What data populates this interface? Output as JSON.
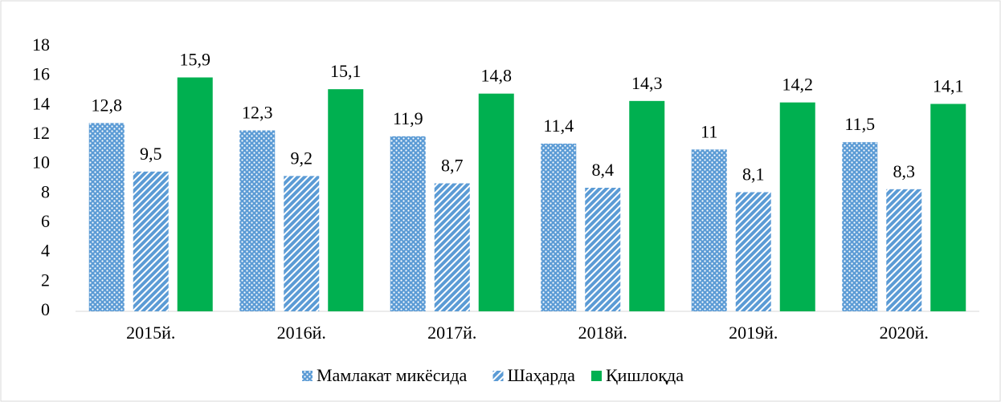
{
  "chart_data": {
    "type": "bar",
    "categories": [
      "2015й.",
      "2016й.",
      "2017й.",
      "2018й.",
      "2019й.",
      "2020й."
    ],
    "series": [
      {
        "name": "Мамлакат микёсида",
        "color": "#5b9bd5",
        "pattern": "dots",
        "values": [
          12.8,
          12.3,
          11.9,
          11.4,
          11,
          11.5
        ],
        "value_labels": [
          "12,8",
          "12,3",
          "11,9",
          "11,4",
          "11",
          "11,5"
        ]
      },
      {
        "name": "Шаҳарда",
        "color": "#5b9bd5",
        "pattern": "diagonal",
        "values": [
          9.5,
          9.2,
          8.7,
          8.4,
          8.1,
          8.3
        ],
        "value_labels": [
          "9,5",
          "9,2",
          "8,7",
          "8,4",
          "8,1",
          "8,3"
        ]
      },
      {
        "name": "Қишлоқда",
        "color": "#00b050",
        "pattern": "solid",
        "values": [
          15.9,
          15.1,
          14.8,
          14.3,
          14.2,
          14.1
        ],
        "value_labels": [
          "15,9",
          "15,1",
          "14,8",
          "14,3",
          "14,2",
          "14,1"
        ]
      }
    ],
    "ylim": [
      0,
      18
    ],
    "yticks": [
      0,
      2,
      4,
      6,
      8,
      10,
      12,
      14,
      16,
      18
    ],
    "grid": false,
    "legend": "bottom"
  }
}
